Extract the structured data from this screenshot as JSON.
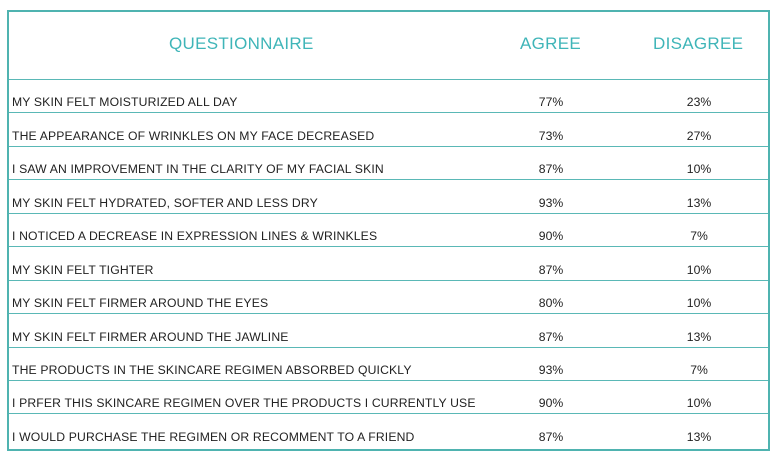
{
  "header": {
    "questionnaire": "QUESTIONNAIRE",
    "agree": "AGREE",
    "disagree": "DISAGREE"
  },
  "rows": [
    {
      "question": "MY SKIN FELT MOISTURIZED ALL DAY",
      "agree": "77%",
      "disagree": "23%"
    },
    {
      "question": "THE APPEARANCE OF WRINKLES ON MY FACE DECREASED",
      "agree": "73%",
      "disagree": "27%"
    },
    {
      "question": "I SAW AN IMPROVEMENT IN THE CLARITY OF MY FACIAL SKIN",
      "agree": "87%",
      "disagree": "10%"
    },
    {
      "question": "MY SKIN FELT HYDRATED, SOFTER AND LESS DRY",
      "agree": "93%",
      "disagree": "13%"
    },
    {
      "question": "I NOTICED A DECREASE IN EXPRESSION LINES & WRINKLES",
      "agree": "90%",
      "disagree": "7%"
    },
    {
      "question": "MY SKIN FELT TIGHTER",
      "agree": "87%",
      "disagree": "10%"
    },
    {
      "question": "MY SKIN FELT FIRMER AROUND THE EYES",
      "agree": "80%",
      "disagree": "10%"
    },
    {
      "question": "MY SKIN FELT FIRMER AROUND THE JAWLINE",
      "agree": "87%",
      "disagree": "13%"
    },
    {
      "question": "THE PRODUCTS IN THE SKINCARE REGIMEN ABSORBED QUICKLY",
      "agree": "93%",
      "disagree": "7%"
    },
    {
      "question": "I PRFER THIS SKINCARE REGIMEN OVER THE PRODUCTS I CURRENTLY USE",
      "agree": "90%",
      "disagree": "10%"
    },
    {
      "question": "I WOULD PURCHASE THE REGIMEN OR RECOMMENT TO A FRIEND",
      "agree": "87%",
      "disagree": "13%"
    }
  ],
  "colors": {
    "border": "#4fb3b0",
    "header_text": "#3fb5b8",
    "body_text": "#222222"
  }
}
